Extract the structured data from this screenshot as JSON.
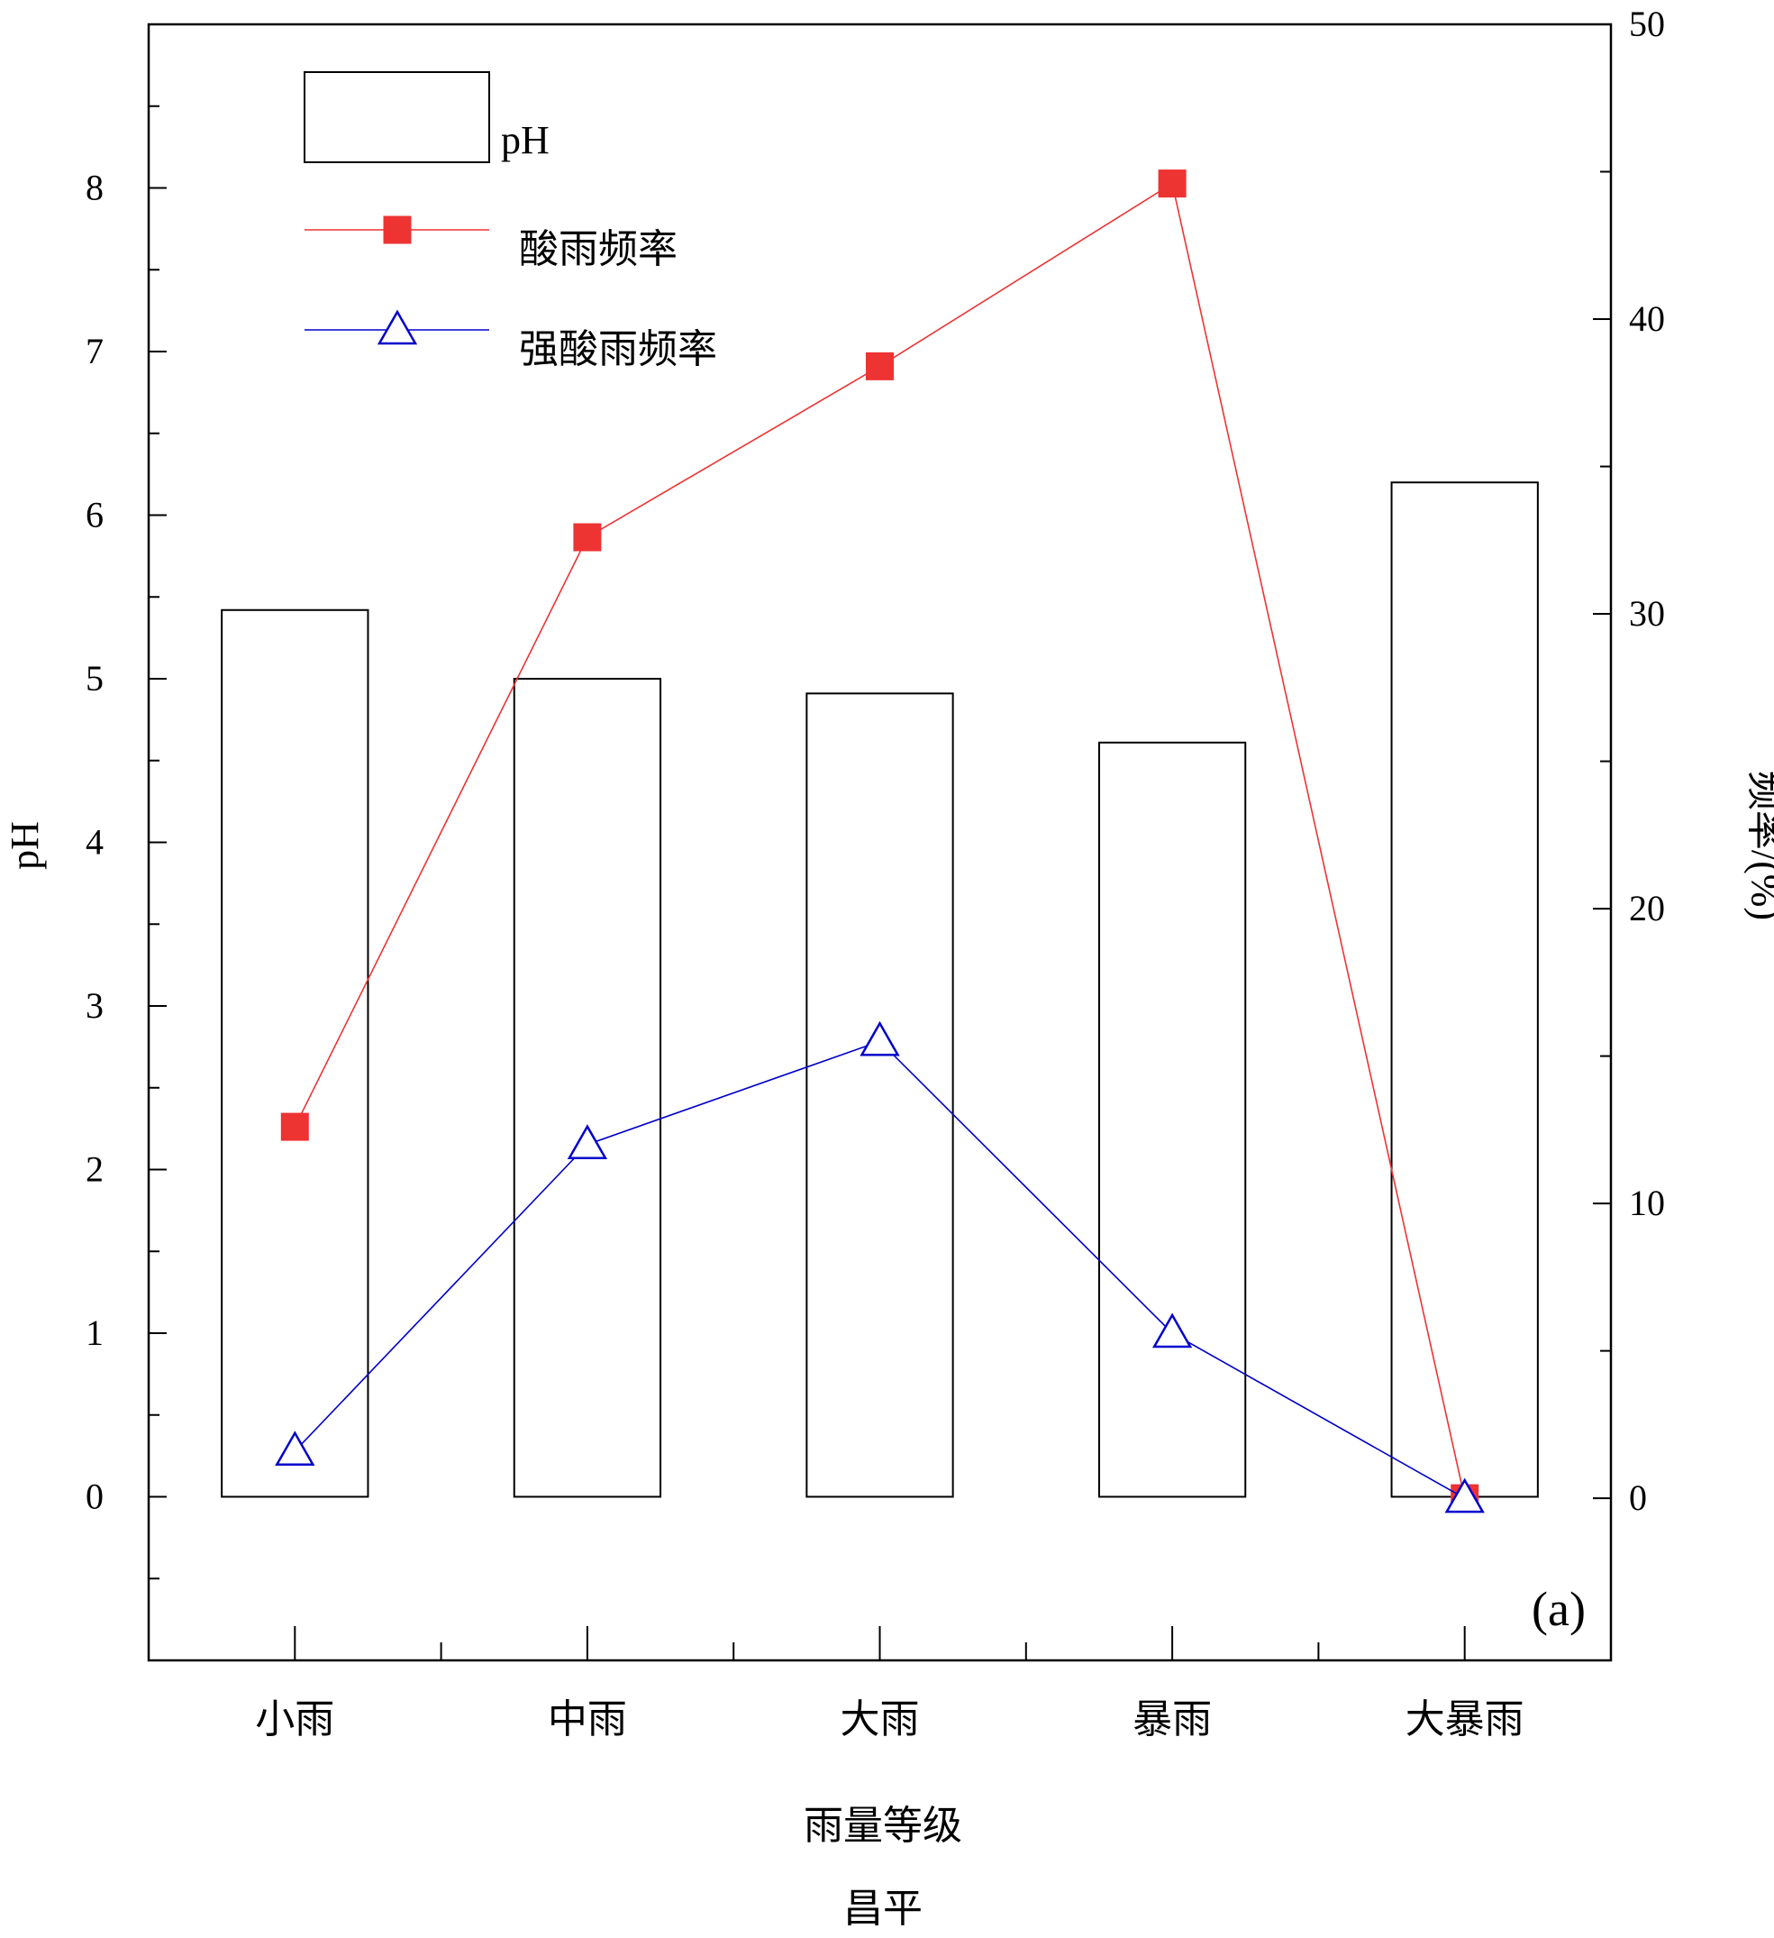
{
  "chart_data": {
    "type": "bar",
    "categories": [
      "小雨",
      "中雨",
      "大雨",
      "暴雨",
      "大暴雨"
    ],
    "xlabel": "雨量等级",
    "station": "昌平",
    "panel_label": "(a)",
    "y_left": {
      "label": "pH",
      "ylim": [
        -1.0,
        9.0
      ],
      "ticks": [
        0,
        1,
        2,
        3,
        4,
        5,
        6,
        7,
        8
      ]
    },
    "y_right": {
      "label": "频率/(%)",
      "ylim": [
        -5.5,
        50.0
      ],
      "ticks": [
        0,
        10,
        20,
        30,
        40,
        50
      ]
    },
    "series": [
      {
        "name": "pH",
        "kind": "bar",
        "axis": "left",
        "values": [
          5.42,
          5.0,
          4.91,
          4.61,
          6.2
        ],
        "color": "#000000"
      },
      {
        "name": "酸雨频率",
        "kind": "line",
        "axis": "right",
        "marker": "square",
        "values": [
          12.6,
          32.6,
          38.4,
          44.6,
          0.0
        ],
        "color": "#ee3333"
      },
      {
        "name": "强酸雨频率",
        "kind": "line",
        "axis": "right",
        "marker": "triangle",
        "values": [
          1.6,
          12.0,
          15.5,
          5.6,
          0.0
        ],
        "color": "#0000cc"
      }
    ],
    "legend": {
      "position": "top-left"
    },
    "grid": false
  }
}
